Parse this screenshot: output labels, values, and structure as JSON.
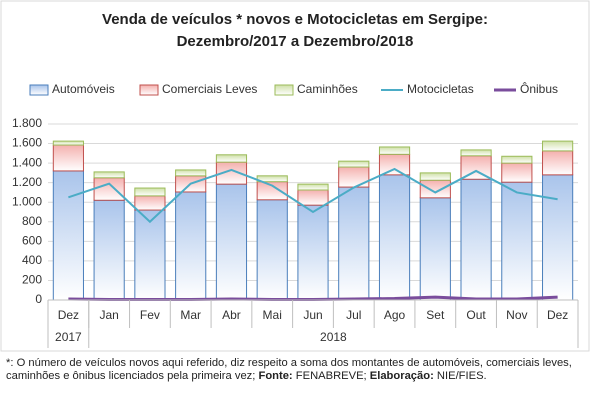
{
  "chart_data": {
    "type": "stacked_bar_line",
    "title": [
      "Venda de veículos * novos e Motocicletas em Sergipe:",
      "Dezembro/2017 a Dezembro/2018"
    ],
    "categories": [
      "Dez",
      "Jan",
      "Fev",
      "Mar",
      "Abr",
      "Mai",
      "Jun",
      "Jul",
      "Ago",
      "Set",
      "Out",
      "Nov",
      "Dez"
    ],
    "x_groups": [
      {
        "label": "2017",
        "count": 1
      },
      {
        "label": "2018",
        "count": 12
      }
    ],
    "series": [
      {
        "name": "Automóveis",
        "kind": "bar",
        "color": "#4a7ebb",
        "fill": "#a9c4eb",
        "values": [
          1320,
          1020,
          920,
          1105,
          1185,
          1025,
          970,
          1155,
          1280,
          1045,
          1235,
          1205,
          1280
        ]
      },
      {
        "name": "Comerciais Leves",
        "kind": "bar",
        "color": "#c0504d",
        "fill": "#f4b0ae",
        "values": [
          265,
          230,
          145,
          165,
          225,
          185,
          155,
          205,
          210,
          180,
          240,
          195,
          245
        ]
      },
      {
        "name": "Caminhões",
        "kind": "bar",
        "color": "#9bbb59",
        "fill": "#cfe0a8",
        "values": [
          40,
          60,
          80,
          60,
          75,
          60,
          60,
          60,
          75,
          75,
          60,
          70,
          100
        ]
      },
      {
        "name": "Motocicletas",
        "kind": "line",
        "color": "#4bacc6",
        "values": [
          1050,
          1190,
          800,
          1190,
          1330,
          1170,
          900,
          1150,
          1340,
          1100,
          1320,
          1100,
          1030
        ]
      },
      {
        "name": "Ônibus",
        "kind": "line",
        "color": "#7a4d9c",
        "values": [
          10,
          5,
          5,
          5,
          10,
          5,
          5,
          10,
          15,
          30,
          10,
          10,
          30
        ]
      }
    ],
    "ylim": [
      0,
      1800
    ],
    "yticks": [
      0,
      200,
      400,
      600,
      800,
      {
        "value": 1000,
        "label": "1.000"
      },
      {
        "value": 1200,
        "label": "1.200"
      },
      {
        "value": 1400,
        "label": "1.400"
      },
      {
        "value": 1600,
        "label": "1.600"
      },
      {
        "value": 1800,
        "label": "1.800"
      }
    ],
    "grid": true,
    "legend": "top",
    "note": [
      {
        "text": "*: O número de veículos novos aqui referido, diz respeito a soma dos montantes de automóveis, comerciais leves, caminhões e ônibus licenciados pela primeira vez; ",
        "bold": false
      },
      {
        "text": "Fonte:",
        "bold": true
      },
      {
        "text": " FENABREVE; ",
        "bold": false
      },
      {
        "text": "Elaboração:",
        "bold": true
      },
      {
        "text": " NIE/FIES.",
        "bold": false
      }
    ]
  }
}
